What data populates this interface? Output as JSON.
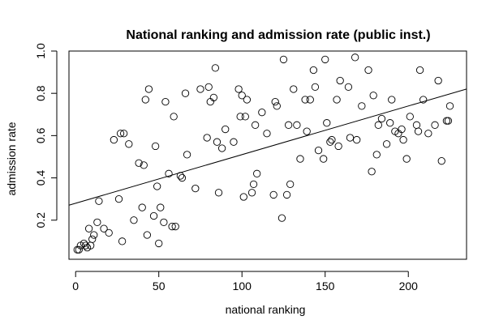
{
  "chart_data": {
    "type": "scatter",
    "title": "National ranking and admission rate (public inst.)",
    "xlabel": "national ranking",
    "ylabel": "admission rate",
    "xlim": [
      -4,
      235
    ],
    "ylim": [
      0.015,
      1.0
    ],
    "xticks": [
      0,
      50,
      100,
      150,
      200
    ],
    "yticks": [
      0.2,
      0.4,
      0.6,
      0.8,
      1.0
    ],
    "xtick_labels": [
      "0",
      "50",
      "100",
      "150",
      "200"
    ],
    "ytick_labels": [
      "0.2",
      "0.4",
      "0.6",
      "0.8",
      "1.0"
    ],
    "grid": false,
    "legend": "none",
    "marker": "open circle",
    "fit_line": {
      "intercept": 0.28,
      "slope": 0.0023
    },
    "points": [
      [
        1,
        0.06
      ],
      [
        2,
        0.06
      ],
      [
        3,
        0.08
      ],
      [
        5,
        0.09
      ],
      [
        6,
        0.08
      ],
      [
        7,
        0.07
      ],
      [
        8,
        0.16
      ],
      [
        9,
        0.08
      ],
      [
        10,
        0.11
      ],
      [
        11,
        0.13
      ],
      [
        13,
        0.19
      ],
      [
        14,
        0.29
      ],
      [
        17,
        0.16
      ],
      [
        20,
        0.14
      ],
      [
        23,
        0.58
      ],
      [
        26,
        0.3
      ],
      [
        27,
        0.61
      ],
      [
        28,
        0.1
      ],
      [
        29,
        0.61
      ],
      [
        32,
        0.56
      ],
      [
        35,
        0.2
      ],
      [
        38,
        0.47
      ],
      [
        40,
        0.26
      ],
      [
        41,
        0.46
      ],
      [
        42,
        0.77
      ],
      [
        43,
        0.13
      ],
      [
        44,
        0.82
      ],
      [
        47,
        0.22
      ],
      [
        48,
        0.55
      ],
      [
        49,
        0.36
      ],
      [
        50,
        0.09
      ],
      [
        51,
        0.26
      ],
      [
        53,
        0.19
      ],
      [
        54,
        0.76
      ],
      [
        56,
        0.42
      ],
      [
        58,
        0.17
      ],
      [
        59,
        0.69
      ],
      [
        60,
        0.17
      ],
      [
        63,
        0.41
      ],
      [
        64,
        0.4
      ],
      [
        66,
        0.8
      ],
      [
        67,
        0.51
      ],
      [
        72,
        0.35
      ],
      [
        75,
        0.82
      ],
      [
        79,
        0.59
      ],
      [
        80,
        0.83
      ],
      [
        81,
        0.76
      ],
      [
        83,
        0.78
      ],
      [
        84,
        0.92
      ],
      [
        85,
        0.57
      ],
      [
        86,
        0.33
      ],
      [
        88,
        0.54
      ],
      [
        90,
        0.63
      ],
      [
        95,
        0.57
      ],
      [
        98,
        0.82
      ],
      [
        99,
        0.69
      ],
      [
        100,
        0.79
      ],
      [
        101,
        0.31
      ],
      [
        102,
        0.69
      ],
      [
        103,
        0.77
      ],
      [
        106,
        0.33
      ],
      [
        107,
        0.37
      ],
      [
        108,
        0.65
      ],
      [
        109,
        0.42
      ],
      [
        112,
        0.71
      ],
      [
        115,
        0.61
      ],
      [
        119,
        0.32
      ],
      [
        120,
        0.76
      ],
      [
        121,
        0.74
      ],
      [
        124,
        0.21
      ],
      [
        125,
        0.96
      ],
      [
        127,
        0.32
      ],
      [
        128,
        0.65
      ],
      [
        129,
        0.37
      ],
      [
        131,
        0.82
      ],
      [
        133,
        0.65
      ],
      [
        135,
        0.49
      ],
      [
        138,
        0.77
      ],
      [
        139,
        0.62
      ],
      [
        141,
        0.77
      ],
      [
        143,
        0.91
      ],
      [
        144,
        0.83
      ],
      [
        146,
        0.53
      ],
      [
        149,
        0.49
      ],
      [
        150,
        0.96
      ],
      [
        151,
        0.66
      ],
      [
        153,
        0.57
      ],
      [
        154,
        0.58
      ],
      [
        157,
        0.77
      ],
      [
        158,
        0.55
      ],
      [
        159,
        0.86
      ],
      [
        164,
        0.83
      ],
      [
        165,
        0.59
      ],
      [
        168,
        0.97
      ],
      [
        169,
        0.58
      ],
      [
        172,
        0.74
      ],
      [
        176,
        0.91
      ],
      [
        178,
        0.43
      ],
      [
        179,
        0.79
      ],
      [
        181,
        0.51
      ],
      [
        182,
        0.65
      ],
      [
        184,
        0.68
      ],
      [
        187,
        0.56
      ],
      [
        189,
        0.66
      ],
      [
        190,
        0.77
      ],
      [
        192,
        0.62
      ],
      [
        194,
        0.61
      ],
      [
        196,
        0.63
      ],
      [
        197,
        0.58
      ],
      [
        199,
        0.49
      ],
      [
        201,
        0.69
      ],
      [
        205,
        0.65
      ],
      [
        206,
        0.62
      ],
      [
        207,
        0.91
      ],
      [
        209,
        0.77
      ],
      [
        212,
        0.61
      ],
      [
        216,
        0.65
      ],
      [
        218,
        0.86
      ],
      [
        220,
        0.48
      ],
      [
        223,
        0.67
      ],
      [
        224,
        0.67
      ],
      [
        225,
        0.74
      ]
    ]
  }
}
